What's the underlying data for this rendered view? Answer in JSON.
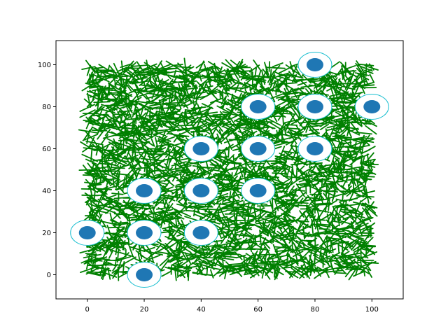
{
  "chart_data": {
    "type": "scatter",
    "title": "",
    "xlabel": "",
    "ylabel": "",
    "xlim": [
      -11,
      111
    ],
    "ylim": [
      -11.5,
      111.5
    ],
    "xticks": [
      0,
      20,
      40,
      60,
      80,
      100
    ],
    "yticks": [
      0,
      20,
      40,
      60,
      80,
      100
    ],
    "xtick_labels": [
      "0",
      "20",
      "40",
      "60",
      "80",
      "100"
    ],
    "ytick_labels": [
      "0",
      "20",
      "40",
      "60",
      "80",
      "100"
    ],
    "grid": false,
    "background_segments": {
      "description": "dense field of short random line segments",
      "region_x": [
        0,
        100
      ],
      "region_y": [
        0,
        100
      ],
      "color": "#008000"
    },
    "series": [
      {
        "name": "points",
        "color": "#1f77b4",
        "ring_color": "#17becf",
        "x": [
          80,
          60,
          80,
          100,
          40,
          60,
          80,
          20,
          40,
          60,
          0,
          20,
          40,
          20
        ],
        "y": [
          100,
          80,
          80,
          80,
          60,
          60,
          60,
          40,
          40,
          40,
          20,
          20,
          20,
          0
        ]
      }
    ]
  }
}
